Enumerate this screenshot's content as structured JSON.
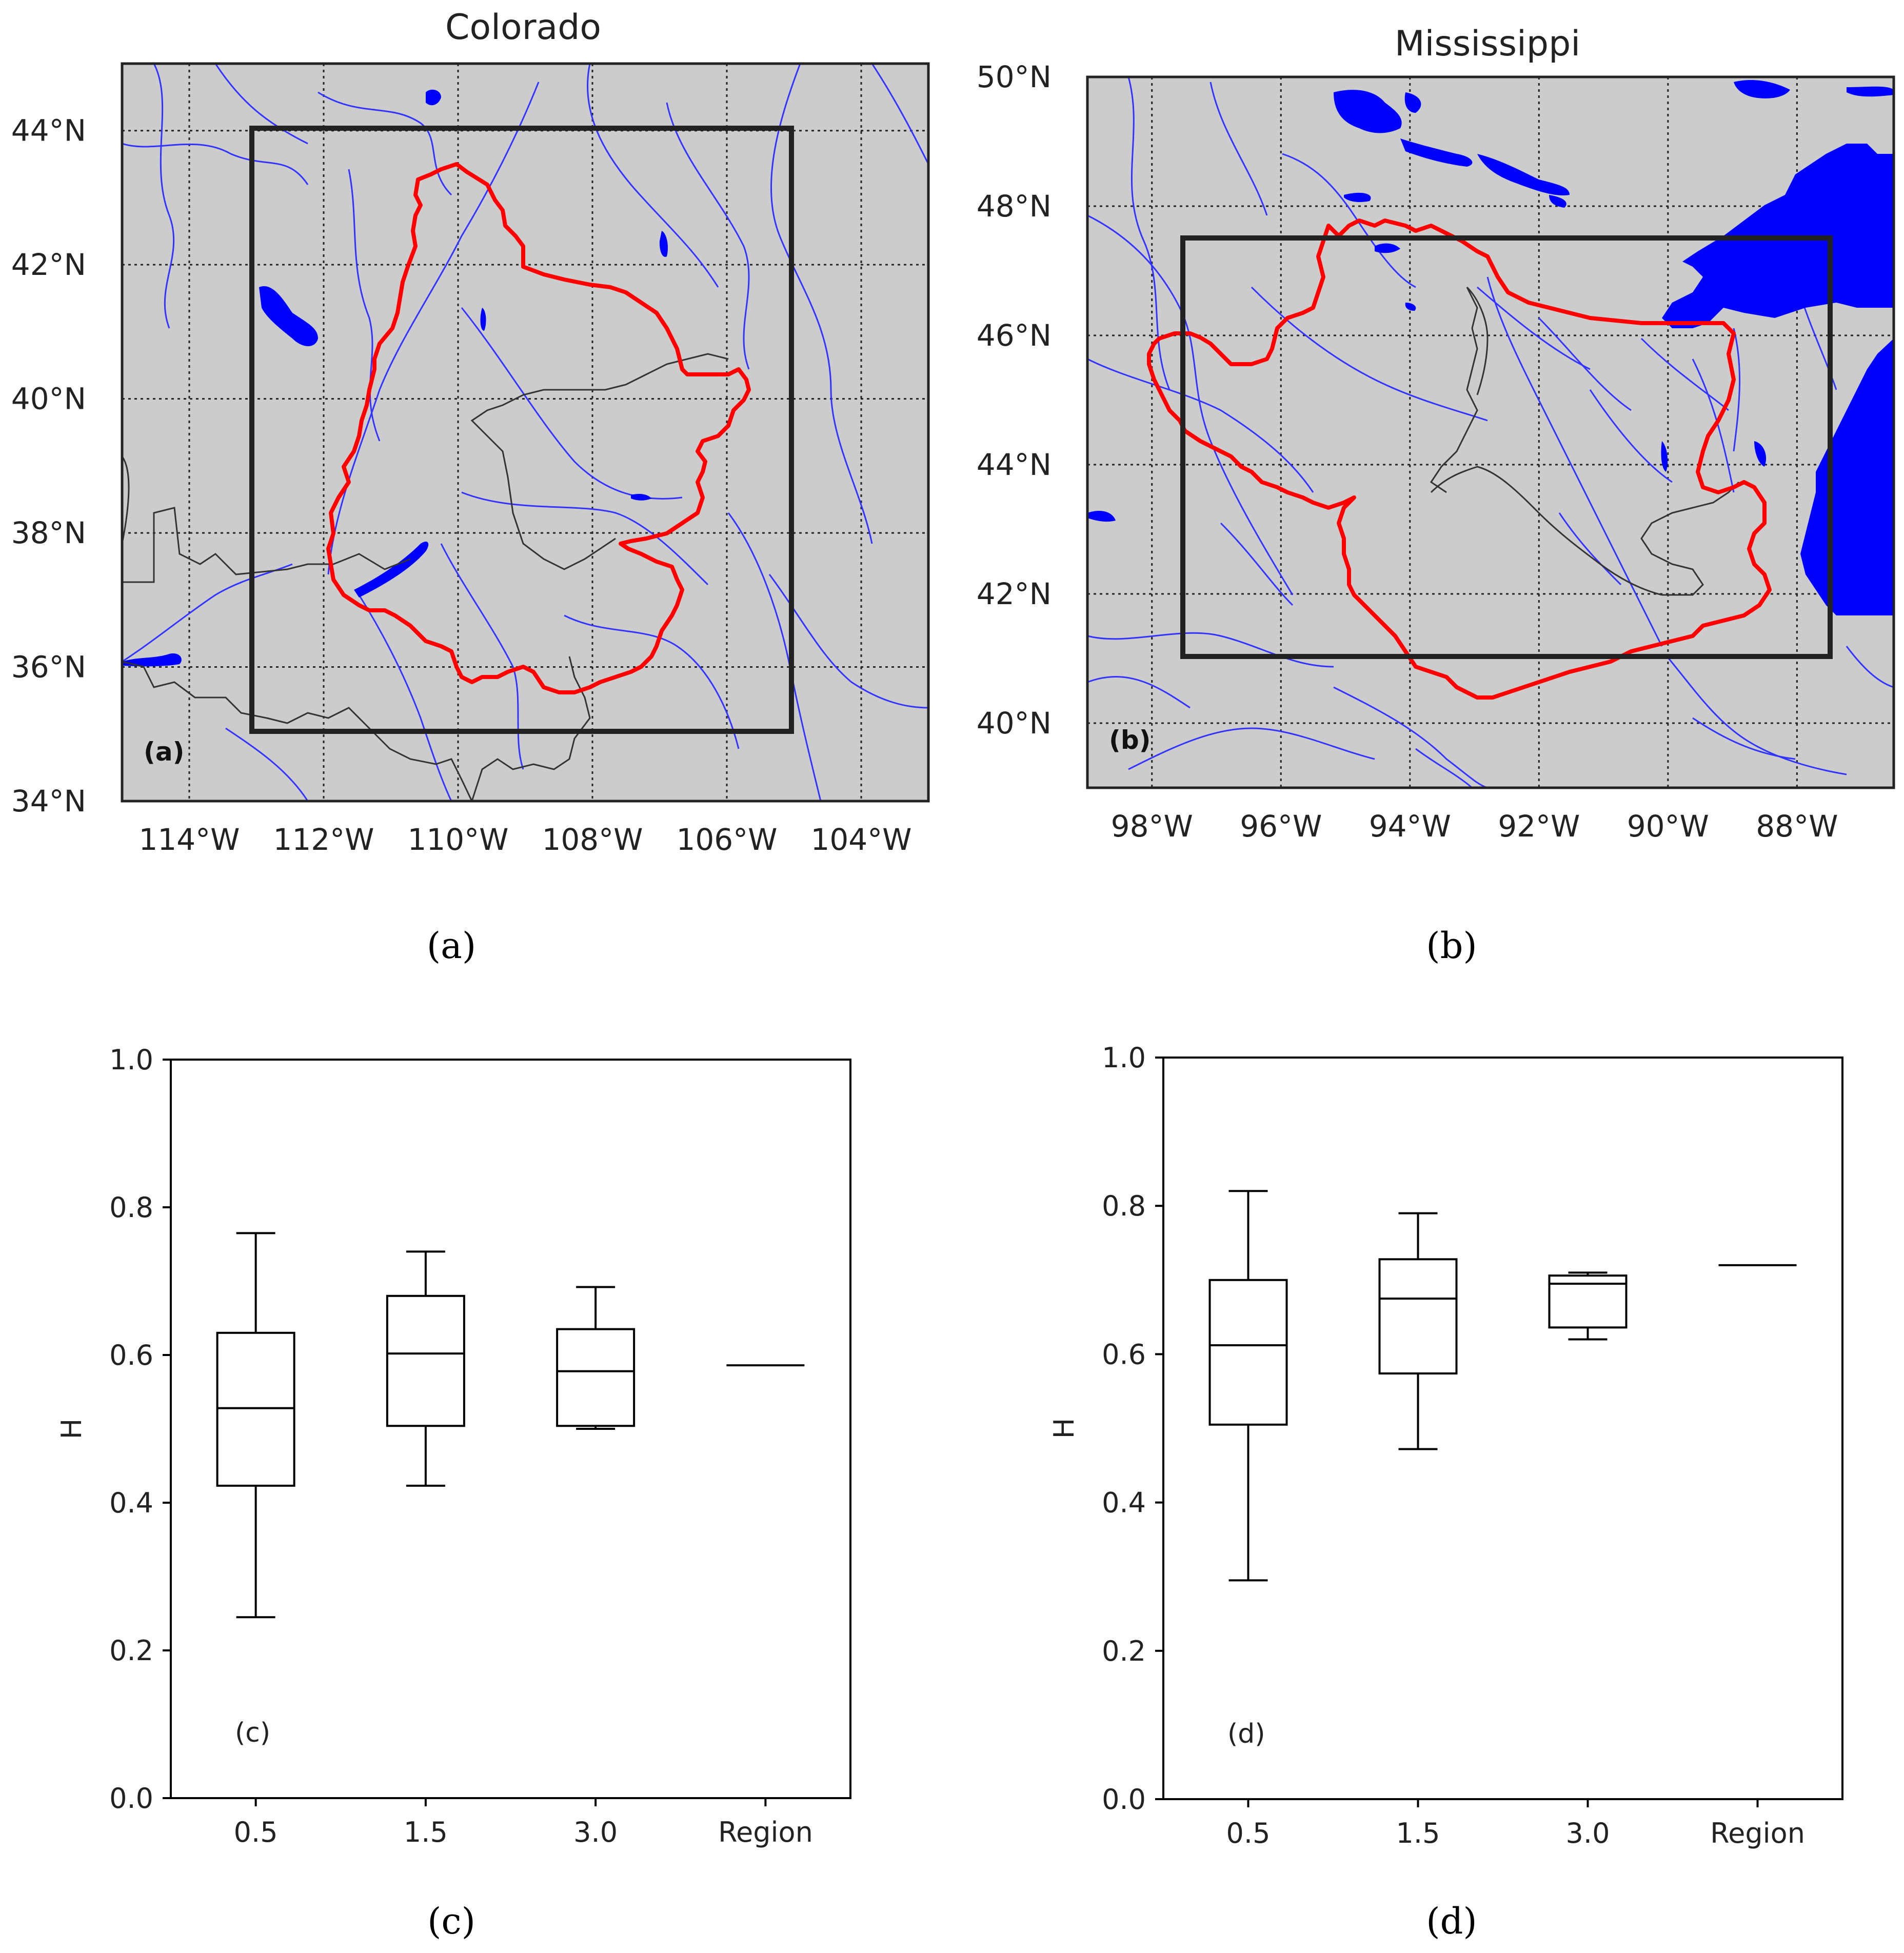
{
  "figure": {
    "captions": [
      "(a)",
      "(b)",
      "(c)",
      "(d)"
    ]
  },
  "colors": {
    "land": "#cccccc",
    "water": "#0000ff",
    "rivers": "#3333ff",
    "basin_outline": "#ff0000",
    "state_borders": "#333333",
    "study_box": "#222222",
    "box_plot": "#000000"
  },
  "maps": [
    {
      "title": "Colorado",
      "panel_label": "(a)",
      "lon_range": [
        -115,
        -103
      ],
      "lat_range": [
        34,
        45
      ],
      "lon_ticks": [
        "114°W",
        "112°W",
        "110°W",
        "108°W",
        "106°W",
        "104°W"
      ],
      "lat_ticks": [
        "34°N",
        "36°N",
        "38°N",
        "40°N",
        "42°N",
        "44°N"
      ],
      "study_box": {
        "lon": [
          -113,
          -105
        ],
        "lat": [
          35,
          44
        ]
      }
    },
    {
      "title": "Mississippi",
      "panel_label": "(b)",
      "lon_range": [
        -99,
        -86.5
      ],
      "lat_range": [
        39,
        50
      ],
      "lon_ticks": [
        "98°W",
        "96°W",
        "94°W",
        "92°W",
        "90°W",
        "88°W"
      ],
      "lat_ticks": [
        "40°N",
        "42°N",
        "44°N",
        "46°N",
        "48°N",
        "50°N"
      ],
      "study_box": {
        "lon": [
          -97.5,
          -87.5
        ],
        "lat": [
          41,
          47.5
        ]
      }
    }
  ],
  "chart_data": [
    {
      "type": "box",
      "panel_label": "(c)",
      "ylabel": "H",
      "ylim": [
        0,
        1.0
      ],
      "yticks": [
        "0.0",
        "0.2",
        "0.4",
        "0.6",
        "0.8",
        "1.0"
      ],
      "categories": [
        "0.5",
        "1.5",
        "3.0",
        "Region"
      ],
      "boxes": [
        {
          "category": "0.5",
          "whisker_low": 0.245,
          "q1": 0.423,
          "median": 0.528,
          "q3": 0.63,
          "whisker_high": 0.765
        },
        {
          "category": "1.5",
          "whisker_low": 0.423,
          "q1": 0.504,
          "median": 0.602,
          "q3": 0.68,
          "whisker_high": 0.74
        },
        {
          "category": "3.0",
          "whisker_low": 0.5,
          "q1": 0.504,
          "median": 0.578,
          "q3": 0.635,
          "whisker_high": 0.692
        },
        {
          "category": "Region",
          "whisker_low": 0.586,
          "q1": 0.586,
          "median": 0.586,
          "q3": 0.586,
          "whisker_high": 0.586
        }
      ]
    },
    {
      "type": "box",
      "panel_label": "(d)",
      "ylabel": "H",
      "ylim": [
        0,
        1.0
      ],
      "yticks": [
        "0.0",
        "0.2",
        "0.4",
        "0.6",
        "0.8",
        "1.0"
      ],
      "categories": [
        "0.5",
        "1.5",
        "3.0",
        "Region"
      ],
      "boxes": [
        {
          "category": "0.5",
          "whisker_low": 0.295,
          "q1": 0.505,
          "median": 0.612,
          "q3": 0.7,
          "whisker_high": 0.82
        },
        {
          "category": "1.5",
          "whisker_low": 0.472,
          "q1": 0.574,
          "median": 0.675,
          "q3": 0.728,
          "whisker_high": 0.79
        },
        {
          "category": "3.0",
          "whisker_low": 0.62,
          "q1": 0.636,
          "median": 0.695,
          "q3": 0.706,
          "whisker_high": 0.71
        },
        {
          "category": "Region",
          "whisker_low": 0.72,
          "q1": 0.72,
          "median": 0.72,
          "q3": 0.72,
          "whisker_high": 0.72
        }
      ]
    }
  ]
}
